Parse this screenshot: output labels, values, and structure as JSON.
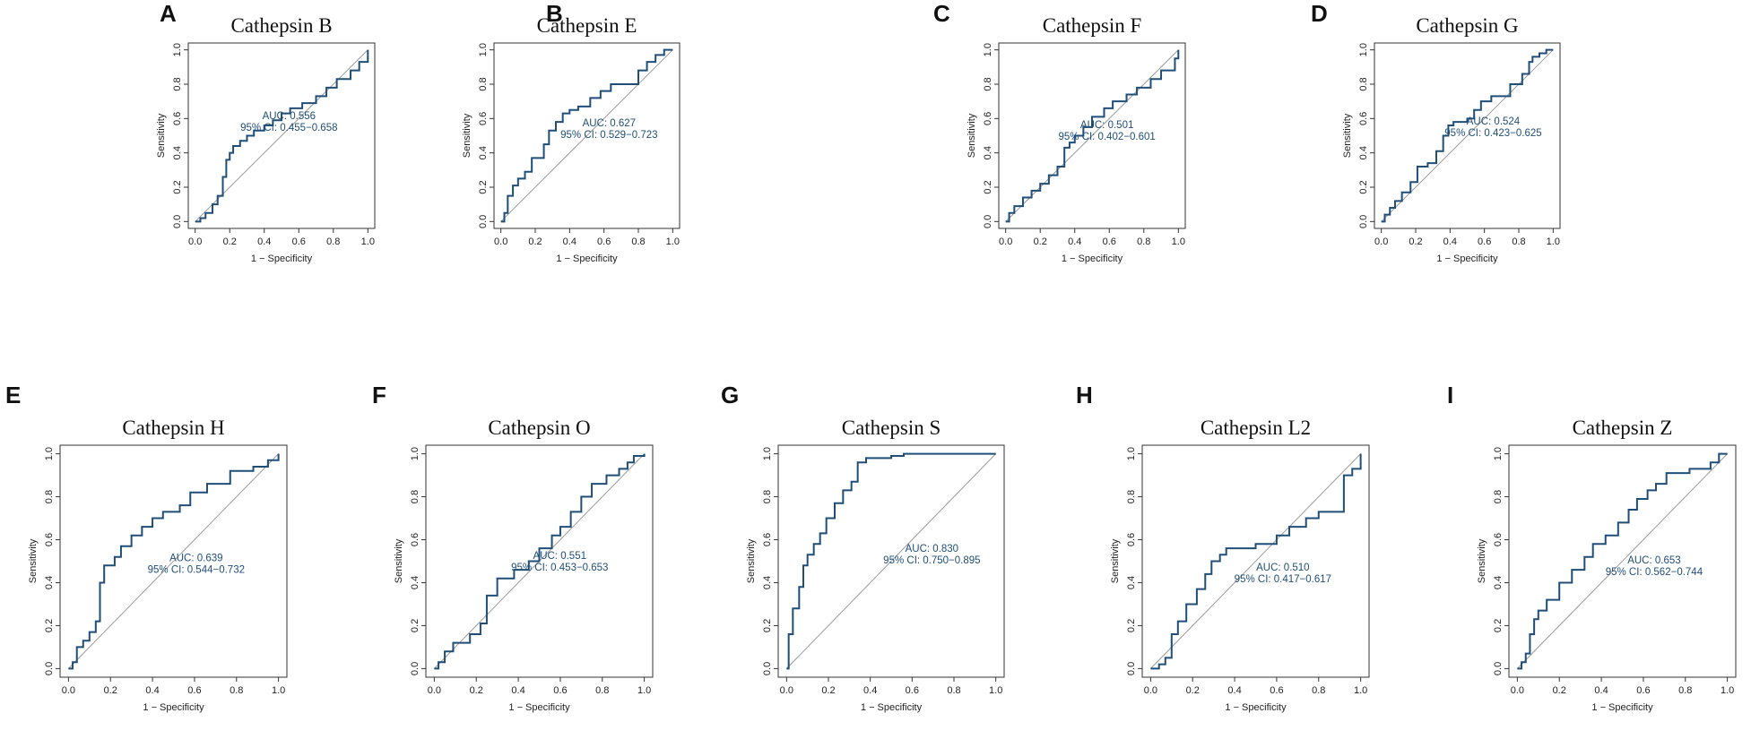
{
  "figure": {
    "roc_color": "#1f4e79",
    "diagonal_color": "#9a9a9a",
    "text_color": "#111111"
  },
  "chart_data": [
    {
      "panel": "A",
      "type": "line",
      "title": "Cathepsin B",
      "xlabel": "1 − Specificity",
      "ylabel": "Sensitivity",
      "xlim": [
        0,
        1
      ],
      "ylim": [
        0,
        1
      ],
      "xticks": [
        "0.0",
        "0.2",
        "0.4",
        "0.6",
        "0.8",
        "1.0"
      ],
      "yticks": [
        "0.0",
        "0.2",
        "0.4",
        "0.6",
        "0.8",
        "1.0"
      ],
      "auc_label": "AUC: 0.556",
      "ci_label": "95% CI: 0.455−0.658",
      "x": [
        0,
        0.03,
        0.03,
        0.06,
        0.06,
        0.1,
        0.1,
        0.13,
        0.13,
        0.16,
        0.16,
        0.18,
        0.18,
        0.2,
        0.2,
        0.22,
        0.22,
        0.26,
        0.26,
        0.3,
        0.3,
        0.34,
        0.34,
        0.4,
        0.4,
        0.45,
        0.45,
        0.5,
        0.5,
        0.55,
        0.55,
        0.62,
        0.62,
        0.7,
        0.7,
        0.76,
        0.76,
        0.82,
        0.82,
        0.9,
        0.9,
        0.95,
        0.95,
        1.0,
        1.0
      ],
      "y": [
        0,
        0,
        0.02,
        0.02,
        0.05,
        0.05,
        0.1,
        0.1,
        0.15,
        0.15,
        0.26,
        0.26,
        0.36,
        0.36,
        0.4,
        0.4,
        0.44,
        0.44,
        0.47,
        0.47,
        0.5,
        0.5,
        0.53,
        0.53,
        0.56,
        0.56,
        0.59,
        0.59,
        0.63,
        0.63,
        0.66,
        0.66,
        0.69,
        0.69,
        0.73,
        0.73,
        0.78,
        0.78,
        0.83,
        0.83,
        0.88,
        0.88,
        0.93,
        0.93,
        1.0
      ]
    },
    {
      "panel": "B",
      "type": "line",
      "title": "Cathepsin E",
      "xlabel": "1 − Specificity",
      "ylabel": "Sensitivity",
      "xlim": [
        0,
        1
      ],
      "ylim": [
        0,
        1
      ],
      "xticks": [
        "0.0",
        "0.2",
        "0.4",
        "0.6",
        "0.8",
        "1.0"
      ],
      "yticks": [
        "0.0",
        "0.2",
        "0.4",
        "0.6",
        "0.8",
        "1.0"
      ],
      "auc_label": "AUC: 0.627",
      "ci_label": "95% CI: 0.529−0.723",
      "x": [
        0,
        0.02,
        0.02,
        0.04,
        0.04,
        0.07,
        0.07,
        0.1,
        0.1,
        0.14,
        0.14,
        0.18,
        0.18,
        0.25,
        0.25,
        0.28,
        0.28,
        0.32,
        0.32,
        0.36,
        0.36,
        0.4,
        0.4,
        0.45,
        0.45,
        0.52,
        0.52,
        0.58,
        0.58,
        0.64,
        0.64,
        0.8,
        0.8,
        0.85,
        0.85,
        0.9,
        0.9,
        0.95,
        0.95,
        1.0
      ],
      "y": [
        0,
        0,
        0.05,
        0.05,
        0.15,
        0.15,
        0.21,
        0.21,
        0.25,
        0.25,
        0.29,
        0.29,
        0.37,
        0.37,
        0.45,
        0.45,
        0.53,
        0.53,
        0.58,
        0.58,
        0.63,
        0.63,
        0.65,
        0.65,
        0.67,
        0.67,
        0.72,
        0.72,
        0.76,
        0.76,
        0.8,
        0.8,
        0.88,
        0.88,
        0.93,
        0.93,
        0.97,
        0.97,
        1.0,
        1.0
      ]
    },
    {
      "panel": "C",
      "type": "line",
      "title": "Cathepsin F",
      "xlabel": "1 − Specificity",
      "ylabel": "Sensitivity",
      "xlim": [
        0,
        1
      ],
      "ylim": [
        0,
        1
      ],
      "xticks": [
        "0.0",
        "0.2",
        "0.4",
        "0.6",
        "0.8",
        "1.0"
      ],
      "yticks": [
        "0.0",
        "0.2",
        "0.4",
        "0.6",
        "0.8",
        "1.0"
      ],
      "auc_label": "AUC: 0.501",
      "ci_label": "95% CI: 0.402−0.601",
      "x": [
        0,
        0.02,
        0.02,
        0.05,
        0.05,
        0.1,
        0.1,
        0.15,
        0.15,
        0.2,
        0.2,
        0.25,
        0.25,
        0.3,
        0.3,
        0.34,
        0.34,
        0.37,
        0.37,
        0.4,
        0.4,
        0.45,
        0.45,
        0.5,
        0.5,
        0.57,
        0.57,
        0.62,
        0.62,
        0.7,
        0.7,
        0.76,
        0.76,
        0.84,
        0.84,
        0.9,
        0.9,
        0.98,
        0.98,
        1.0,
        1.0
      ],
      "y": [
        0,
        0,
        0.05,
        0.05,
        0.09,
        0.09,
        0.14,
        0.14,
        0.18,
        0.18,
        0.22,
        0.22,
        0.27,
        0.27,
        0.32,
        0.32,
        0.43,
        0.43,
        0.46,
        0.46,
        0.5,
        0.5,
        0.55,
        0.55,
        0.61,
        0.61,
        0.66,
        0.66,
        0.7,
        0.7,
        0.74,
        0.74,
        0.78,
        0.78,
        0.83,
        0.83,
        0.88,
        0.88,
        0.95,
        0.95,
        1.0
      ]
    },
    {
      "panel": "D",
      "type": "line",
      "title": "Cathepsin G",
      "xlabel": "1 − Specificity",
      "ylabel": "Sensitivity",
      "xlim": [
        0,
        1
      ],
      "ylim": [
        0,
        1
      ],
      "xticks": [
        "0.0",
        "0.2",
        "0.4",
        "0.6",
        "0.8",
        "1.0"
      ],
      "yticks": [
        "0.0",
        "0.2",
        "0.4",
        "0.6",
        "0.8",
        "1.0"
      ],
      "auc_label": "AUC: 0.524",
      "ci_label": "95% CI: 0.423−0.625",
      "x": [
        0,
        0.02,
        0.02,
        0.05,
        0.05,
        0.08,
        0.08,
        0.12,
        0.12,
        0.17,
        0.17,
        0.21,
        0.21,
        0.27,
        0.27,
        0.32,
        0.32,
        0.36,
        0.36,
        0.39,
        0.39,
        0.42,
        0.42,
        0.5,
        0.5,
        0.54,
        0.54,
        0.58,
        0.58,
        0.64,
        0.64,
        0.75,
        0.75,
        0.82,
        0.82,
        0.86,
        0.86,
        0.88,
        0.88,
        0.92,
        0.92,
        0.96,
        0.96,
        1.0
      ],
      "y": [
        0,
        0,
        0.04,
        0.04,
        0.08,
        0.08,
        0.12,
        0.12,
        0.17,
        0.17,
        0.23,
        0.23,
        0.32,
        0.32,
        0.34,
        0.34,
        0.41,
        0.41,
        0.5,
        0.5,
        0.56,
        0.56,
        0.58,
        0.58,
        0.6,
        0.6,
        0.65,
        0.65,
        0.7,
        0.7,
        0.73,
        0.73,
        0.8,
        0.8,
        0.86,
        0.86,
        0.93,
        0.93,
        0.96,
        0.96,
        0.98,
        0.98,
        1.0,
        1.0
      ]
    },
    {
      "panel": "E",
      "type": "line",
      "title": "Cathepsin H",
      "xlabel": "1 − Specificity",
      "ylabel": "Sensitivity",
      "xlim": [
        0,
        1
      ],
      "ylim": [
        0,
        1
      ],
      "xticks": [
        "0.0",
        "0.2",
        "0.4",
        "0.6",
        "0.8",
        "1.0"
      ],
      "yticks": [
        "0.0",
        "0.2",
        "0.4",
        "0.6",
        "0.8",
        "1.0"
      ],
      "auc_label": "AUC: 0.639",
      "ci_label": "95% CI: 0.544−0.732",
      "x": [
        0,
        0.02,
        0.02,
        0.04,
        0.04,
        0.07,
        0.07,
        0.1,
        0.1,
        0.13,
        0.13,
        0.15,
        0.15,
        0.17,
        0.17,
        0.22,
        0.22,
        0.25,
        0.25,
        0.3,
        0.3,
        0.35,
        0.35,
        0.4,
        0.4,
        0.45,
        0.45,
        0.53,
        0.53,
        0.58,
        0.58,
        0.66,
        0.66,
        0.77,
        0.77,
        0.88,
        0.88,
        0.95,
        0.95,
        1.0,
        1.0
      ],
      "y": [
        0,
        0,
        0.03,
        0.03,
        0.1,
        0.1,
        0.13,
        0.13,
        0.17,
        0.17,
        0.22,
        0.22,
        0.4,
        0.4,
        0.48,
        0.48,
        0.52,
        0.52,
        0.57,
        0.57,
        0.62,
        0.62,
        0.66,
        0.66,
        0.7,
        0.7,
        0.73,
        0.73,
        0.76,
        0.76,
        0.82,
        0.82,
        0.86,
        0.86,
        0.92,
        0.92,
        0.94,
        0.94,
        0.97,
        0.97,
        1.0
      ]
    },
    {
      "panel": "F",
      "type": "line",
      "title": "Cathepsin O",
      "xlabel": "1 − Specificity",
      "ylabel": "Sensitivity",
      "xlim": [
        0,
        1
      ],
      "ylim": [
        0,
        1
      ],
      "xticks": [
        "0.0",
        "0.2",
        "0.4",
        "0.6",
        "0.8",
        "1.0"
      ],
      "yticks": [
        "0.0",
        "0.2",
        "0.4",
        "0.6",
        "0.8",
        "1.0"
      ],
      "auc_label": "AUC: 0.551",
      "ci_label": "95% CI: 0.453−0.653",
      "x": [
        0,
        0.02,
        0.02,
        0.05,
        0.05,
        0.09,
        0.09,
        0.17,
        0.17,
        0.22,
        0.22,
        0.25,
        0.25,
        0.3,
        0.3,
        0.38,
        0.38,
        0.45,
        0.45,
        0.5,
        0.5,
        0.56,
        0.56,
        0.6,
        0.6,
        0.65,
        0.65,
        0.7,
        0.7,
        0.75,
        0.75,
        0.82,
        0.82,
        0.88,
        0.88,
        0.92,
        0.92,
        0.95,
        0.95,
        1.0,
        1.0
      ],
      "y": [
        0,
        0,
        0.03,
        0.03,
        0.08,
        0.08,
        0.12,
        0.12,
        0.16,
        0.16,
        0.21,
        0.21,
        0.34,
        0.34,
        0.42,
        0.42,
        0.46,
        0.46,
        0.5,
        0.5,
        0.56,
        0.56,
        0.62,
        0.62,
        0.66,
        0.66,
        0.73,
        0.73,
        0.8,
        0.8,
        0.86,
        0.86,
        0.9,
        0.9,
        0.93,
        0.93,
        0.96,
        0.96,
        0.99,
        0.99,
        1.0
      ]
    },
    {
      "panel": "G",
      "type": "line",
      "title": "Cathepsin S",
      "xlabel": "1 − Specificity",
      "ylabel": "Sensitivity",
      "xlim": [
        0,
        1
      ],
      "ylim": [
        0,
        1
      ],
      "xticks": [
        "0.0",
        "0.2",
        "0.4",
        "0.6",
        "0.8",
        "1.0"
      ],
      "yticks": [
        "0.0",
        "0.2",
        "0.4",
        "0.6",
        "0.8",
        "1.0"
      ],
      "auc_label": "AUC: 0.830",
      "ci_label": "95% CI: 0.750−0.895",
      "x": [
        0,
        0.01,
        0.01,
        0.03,
        0.03,
        0.06,
        0.06,
        0.08,
        0.08,
        0.1,
        0.1,
        0.13,
        0.13,
        0.16,
        0.16,
        0.19,
        0.19,
        0.23,
        0.23,
        0.27,
        0.27,
        0.31,
        0.31,
        0.34,
        0.34,
        0.38,
        0.38,
        0.5,
        0.5,
        0.56,
        0.56,
        1.0
      ],
      "y": [
        0,
        0,
        0.16,
        0.16,
        0.28,
        0.28,
        0.38,
        0.38,
        0.48,
        0.48,
        0.53,
        0.53,
        0.58,
        0.58,
        0.63,
        0.63,
        0.7,
        0.7,
        0.77,
        0.77,
        0.83,
        0.83,
        0.87,
        0.87,
        0.96,
        0.96,
        0.98,
        0.98,
        0.99,
        0.99,
        1.0,
        1.0
      ]
    },
    {
      "panel": "H",
      "type": "line",
      "title": "Cathepsin L2",
      "xlabel": "1 − Specificity",
      "ylabel": "Sensitivity",
      "xlim": [
        0,
        1
      ],
      "ylim": [
        0,
        1
      ],
      "xticks": [
        "0.0",
        "0.2",
        "0.4",
        "0.6",
        "0.8",
        "1.0"
      ],
      "yticks": [
        "0.0",
        "0.2",
        "0.4",
        "0.6",
        "0.8",
        "1.0"
      ],
      "auc_label": "AUC: 0.510",
      "ci_label": "95% CI: 0.417−0.617",
      "x": [
        0,
        0.04,
        0.04,
        0.07,
        0.07,
        0.1,
        0.1,
        0.13,
        0.13,
        0.17,
        0.17,
        0.22,
        0.22,
        0.26,
        0.26,
        0.29,
        0.29,
        0.33,
        0.33,
        0.36,
        0.36,
        0.5,
        0.5,
        0.6,
        0.6,
        0.66,
        0.66,
        0.74,
        0.74,
        0.8,
        0.8,
        0.92,
        0.92,
        0.96,
        0.96,
        1.0,
        1.0
      ],
      "y": [
        0,
        0,
        0.02,
        0.02,
        0.05,
        0.05,
        0.16,
        0.16,
        0.22,
        0.22,
        0.3,
        0.3,
        0.37,
        0.37,
        0.44,
        0.44,
        0.5,
        0.5,
        0.53,
        0.53,
        0.56,
        0.56,
        0.58,
        0.58,
        0.62,
        0.62,
        0.66,
        0.66,
        0.7,
        0.7,
        0.73,
        0.73,
        0.9,
        0.9,
        0.93,
        0.93,
        1.0
      ]
    },
    {
      "panel": "I",
      "type": "line",
      "title": "Cathepsin Z",
      "xlabel": "1 − Specificity",
      "ylabel": "Sensitivity",
      "xlim": [
        0,
        1
      ],
      "ylim": [
        0,
        1
      ],
      "xticks": [
        "0.0",
        "0.2",
        "0.4",
        "0.6",
        "0.8",
        "1.0"
      ],
      "yticks": [
        "0.0",
        "0.2",
        "0.4",
        "0.6",
        "0.8",
        "1.0"
      ],
      "auc_label": "AUC: 0.653",
      "ci_label": "95% CI: 0.562−0.744",
      "x": [
        0,
        0.02,
        0.02,
        0.04,
        0.04,
        0.06,
        0.06,
        0.08,
        0.08,
        0.1,
        0.1,
        0.14,
        0.14,
        0.2,
        0.2,
        0.26,
        0.26,
        0.32,
        0.32,
        0.36,
        0.36,
        0.42,
        0.42,
        0.48,
        0.48,
        0.53,
        0.53,
        0.57,
        0.57,
        0.62,
        0.62,
        0.66,
        0.66,
        0.71,
        0.71,
        0.82,
        0.82,
        0.92,
        0.92,
        0.96,
        0.96,
        1.0
      ],
      "y": [
        0,
        0,
        0.03,
        0.03,
        0.07,
        0.07,
        0.16,
        0.16,
        0.23,
        0.23,
        0.27,
        0.27,
        0.32,
        0.32,
        0.4,
        0.4,
        0.46,
        0.46,
        0.52,
        0.52,
        0.58,
        0.58,
        0.62,
        0.62,
        0.68,
        0.68,
        0.74,
        0.74,
        0.79,
        0.79,
        0.83,
        0.83,
        0.86,
        0.86,
        0.91,
        0.91,
        0.93,
        0.93,
        0.96,
        0.96,
        1.0,
        1.0
      ]
    }
  ]
}
